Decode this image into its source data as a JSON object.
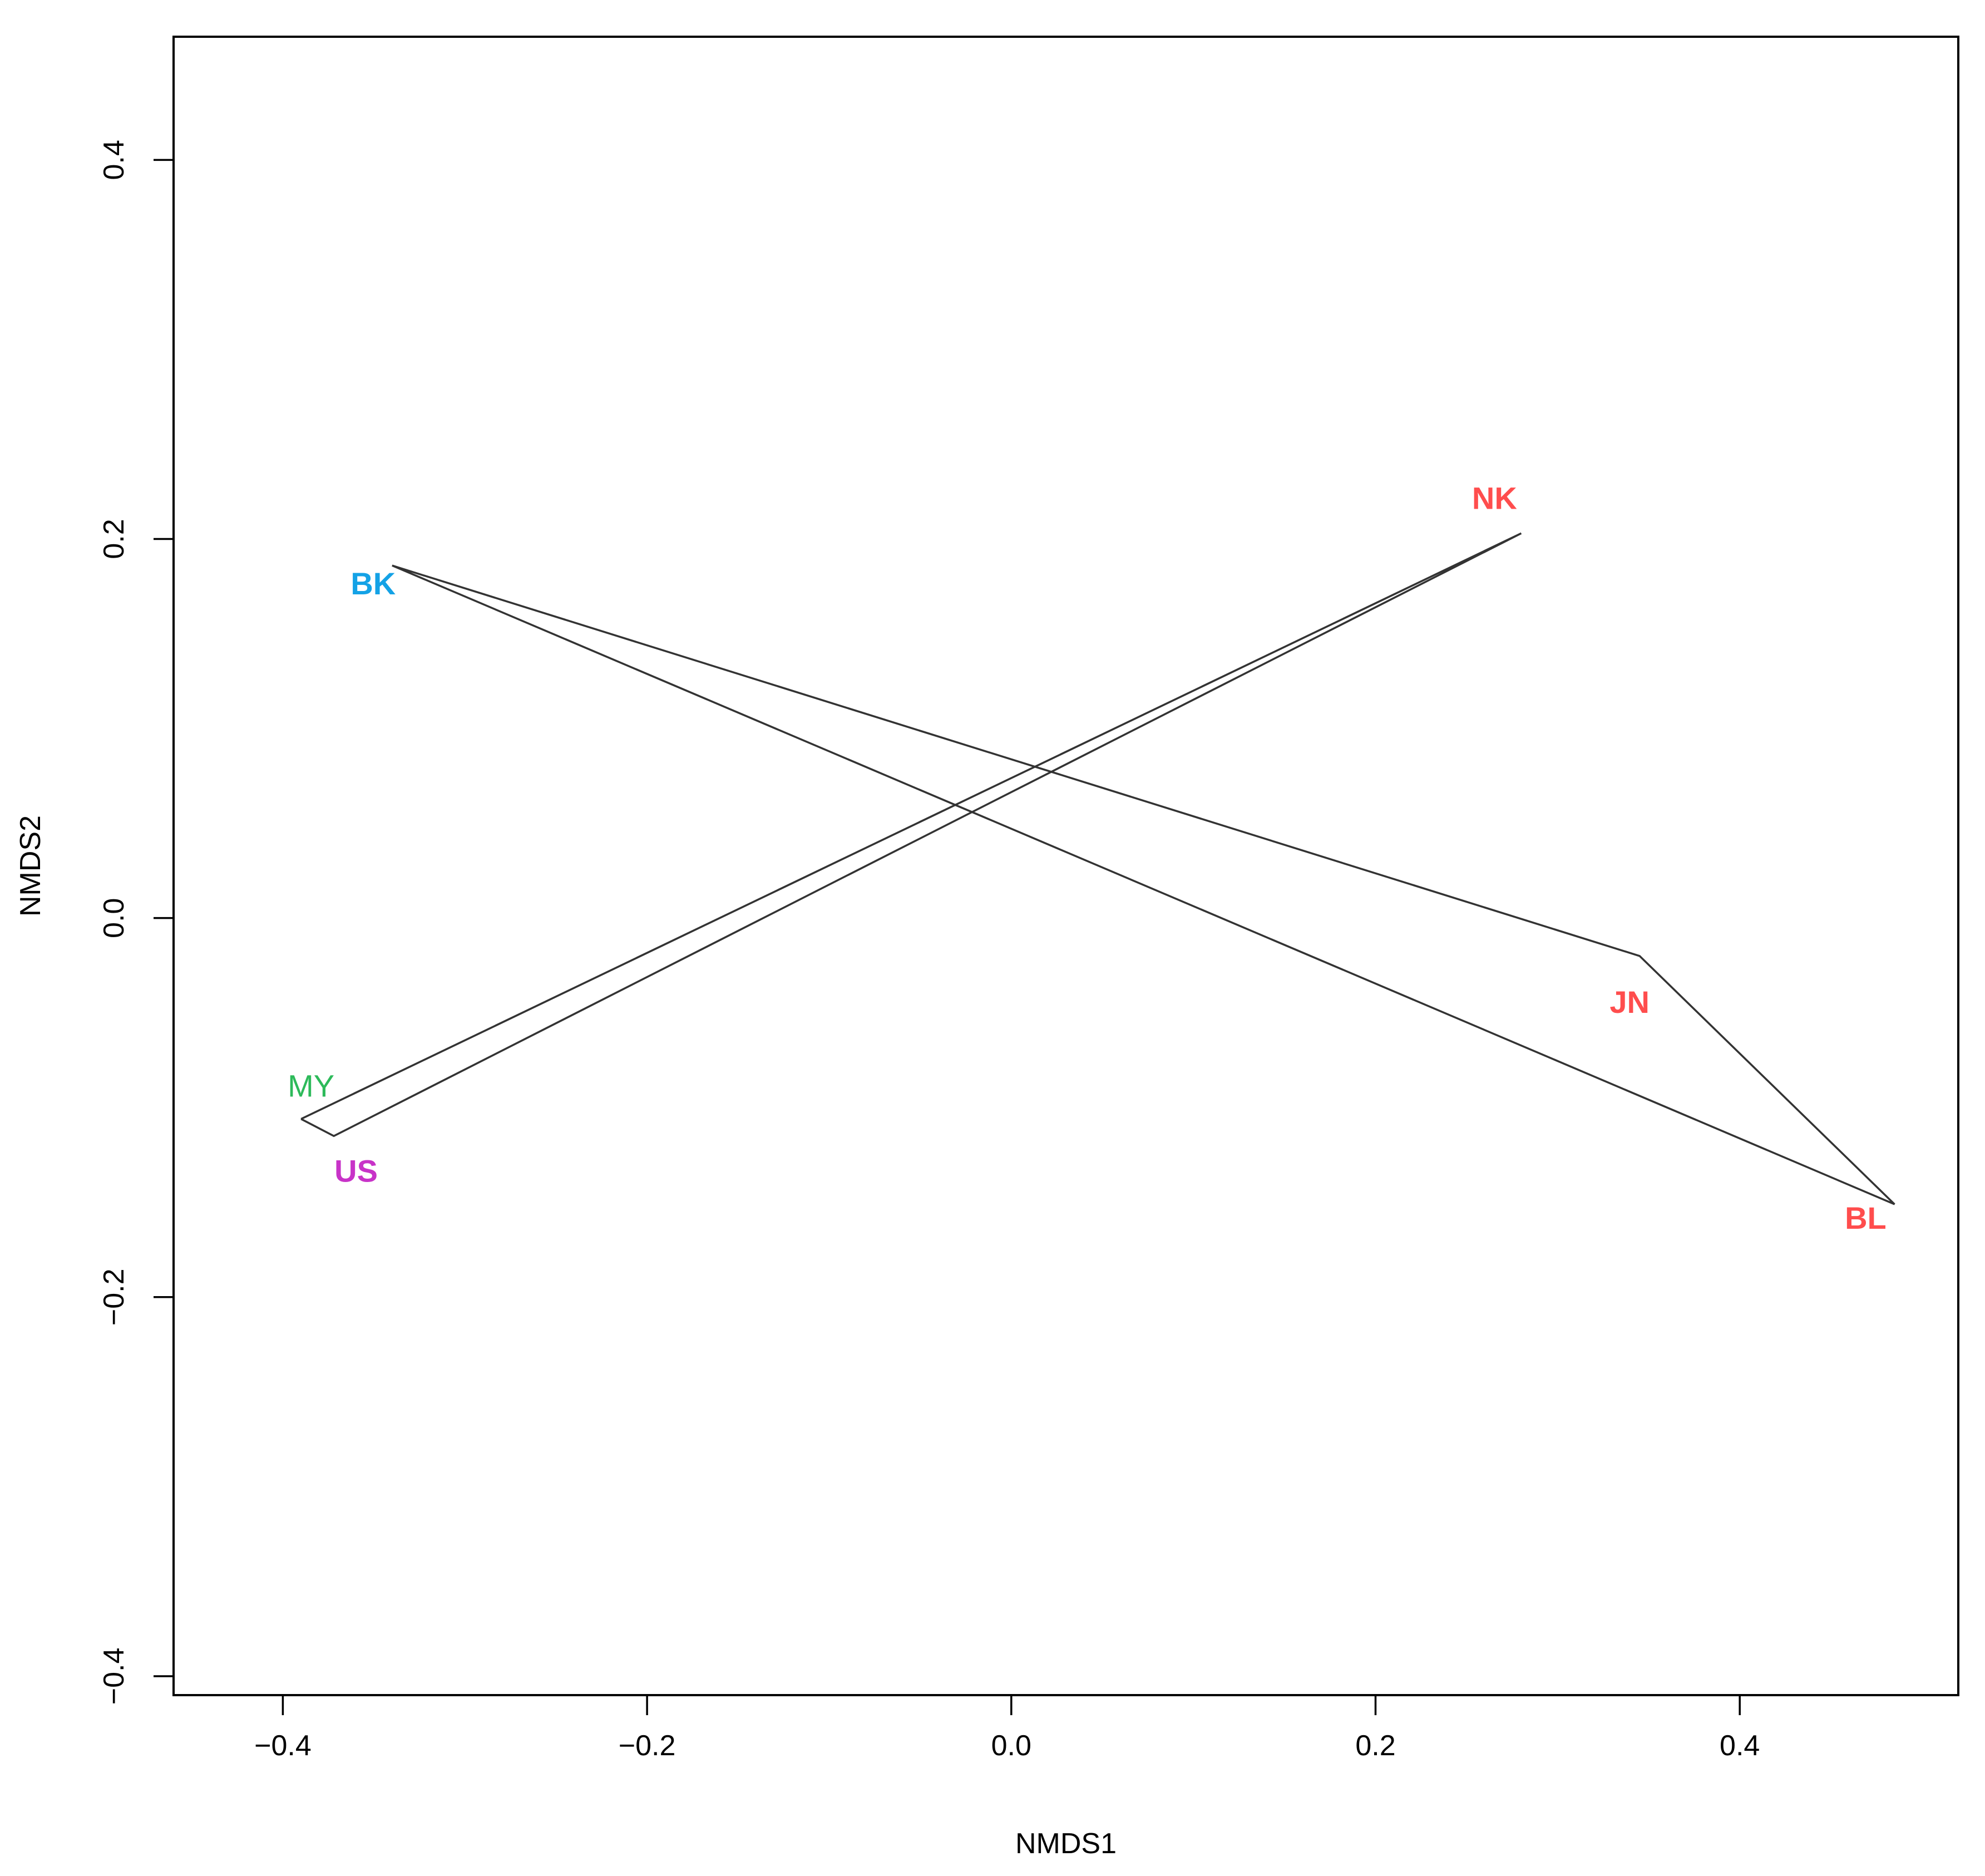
{
  "chart_data": {
    "type": "scatter",
    "title": "",
    "xlabel": "NMDS1",
    "ylabel": "NMDS2",
    "xlim": [
      -0.46,
      0.52
    ],
    "ylim": [
      -0.41,
      0.465
    ],
    "xticks": [
      -0.4,
      -0.2,
      0.0,
      0.2,
      0.4
    ],
    "yticks": [
      -0.4,
      -0.2,
      0.0,
      0.2,
      0.4
    ],
    "xtick_labels": [
      "−0.4",
      "−0.2",
      "0.0",
      "0.2",
      "0.4"
    ],
    "ytick_labels": [
      "−0.4",
      "−0.2",
      "0.0",
      "0.2",
      "0.4"
    ],
    "grid": false,
    "points": [
      {
        "label": "NK",
        "x": 0.28,
        "y": 0.203,
        "color": "#ff4d4d",
        "bold": true
      },
      {
        "label": "BK",
        "x": -0.34,
        "y": 0.186,
        "color": "#14a2e6",
        "bold": true
      },
      {
        "label": "JN",
        "x": 0.345,
        "y": -0.02,
        "color": "#ff4d4d",
        "bold": true
      },
      {
        "label": "MY",
        "x": -0.39,
        "y": -0.106,
        "color": "#2dba5a",
        "bold": false
      },
      {
        "label": "US",
        "x": -0.372,
        "y": -0.115,
        "color": "#c833c8",
        "bold": true
      },
      {
        "label": "BL",
        "x": 0.485,
        "y": -0.151,
        "color": "#ff4d4d",
        "bold": true
      }
    ],
    "path": [
      "MY",
      "NK",
      "US",
      "MY"
    ],
    "path2": [
      "BK",
      "JN",
      "BL",
      "BK"
    ]
  }
}
